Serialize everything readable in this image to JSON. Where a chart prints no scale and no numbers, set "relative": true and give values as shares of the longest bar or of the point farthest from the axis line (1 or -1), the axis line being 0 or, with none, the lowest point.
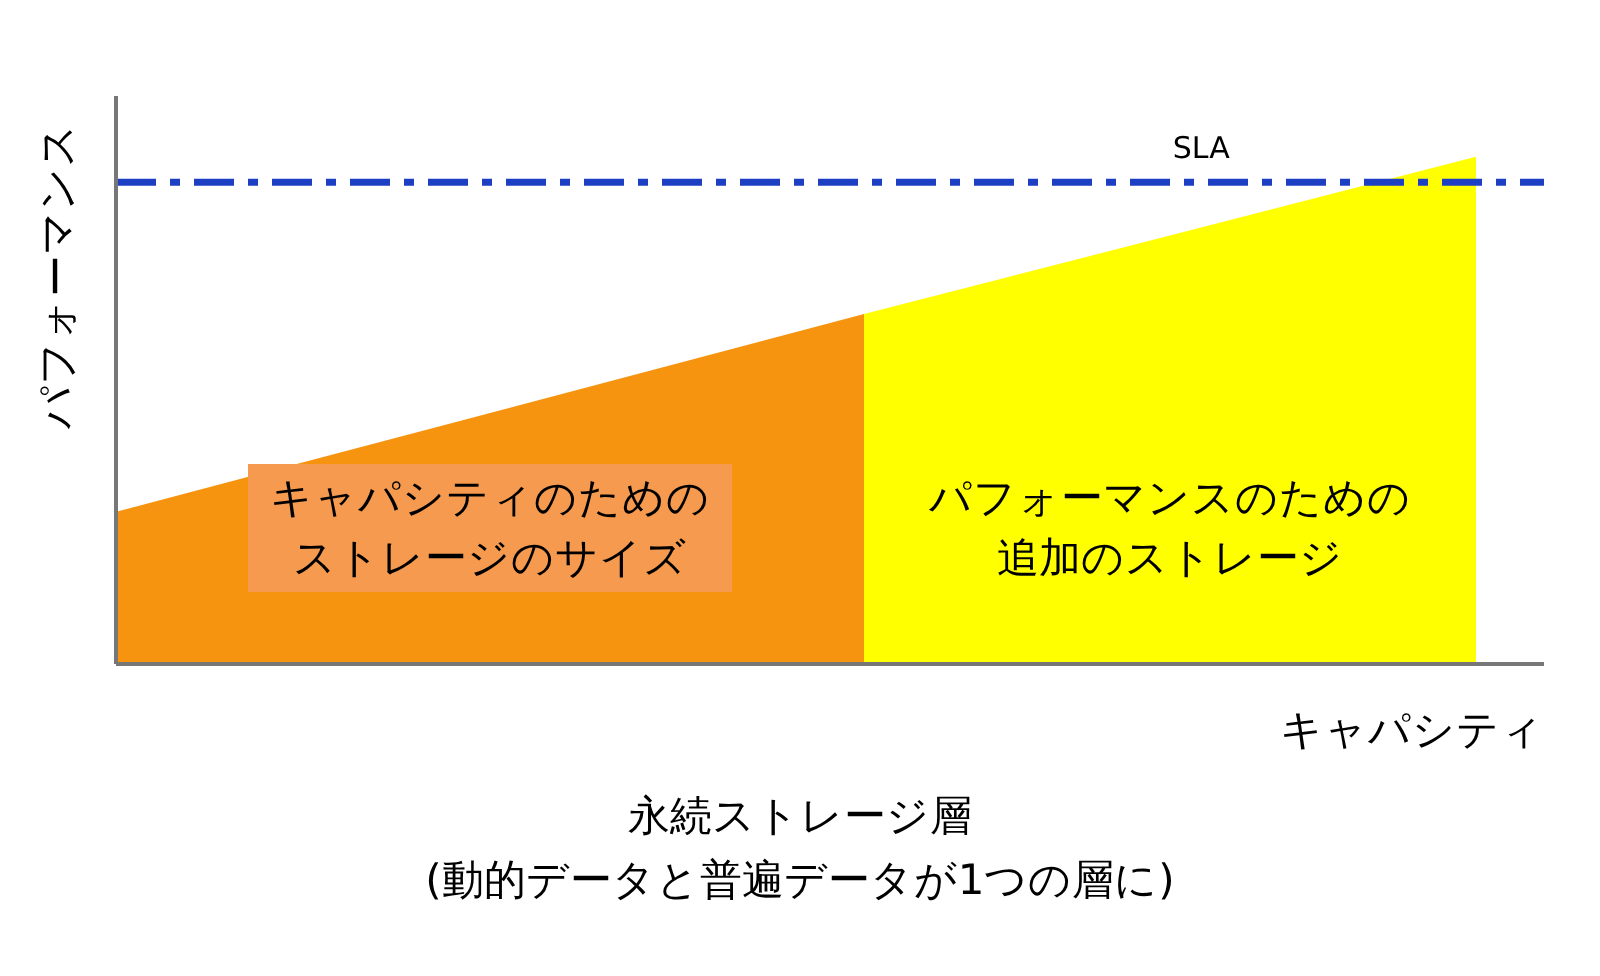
{
  "chart_data": {
    "type": "area",
    "relative": true,
    "xlabel": "キャパシティ",
    "ylabel": "パフォーマンス",
    "categories": [
      null,
      null,
      null,
      null,
      null,
      null,
      null,
      null,
      null,
      null,
      null,
      null,
      null,
      null,
      null,
      null,
      null,
      null,
      null,
      null,
      null
    ],
    "series": [
      {
        "name": "キャパシティのためのストレージのサイズ",
        "color": "#f7940f",
        "values": [
          0.3,
          null,
          null,
          null,
          null,
          null,
          null,
          null,
          null,
          null,
          null,
          0.69,
          null,
          null,
          null,
          null,
          null,
          null,
          null,
          null,
          null
        ]
      },
      {
        "name": "パフォーマンスのための追加のストレージ",
        "color": "#ffff00",
        "values": [
          null,
          null,
          null,
          null,
          null,
          null,
          null,
          null,
          null,
          null,
          null,
          0.69,
          null,
          null,
          null,
          null,
          null,
          null,
          null,
          null,
          1.0
        ]
      }
    ],
    "ref_lines": [
      {
        "axis": "y",
        "value": 0.95,
        "label": "SLA",
        "color": "#1d3fc4",
        "line_style": "dashdot"
      }
    ],
    "annotations": [
      "永続ストレージ層",
      "(動的データと普遍データが1つの層に)"
    ]
  }
}
